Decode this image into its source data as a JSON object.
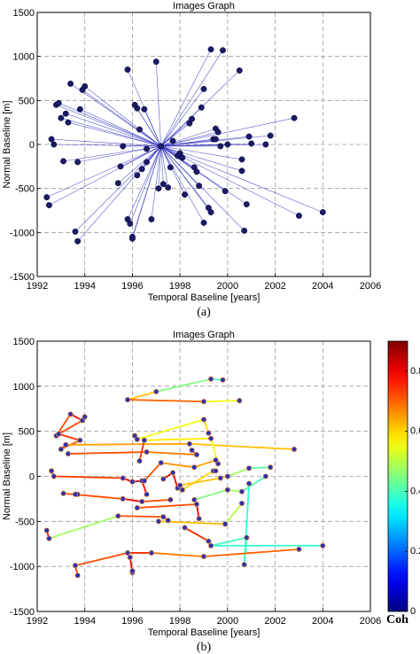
{
  "chart_data": [
    {
      "type": "scatter",
      "title": "Images Graph",
      "xlabel": "Temporal Baseline [years]",
      "ylabel": "Normal Baseline [m]",
      "caption": "(a)",
      "xlim": [
        1992,
        2006
      ],
      "ylim": [
        -1500,
        1500
      ],
      "xticks": [
        "1992",
        "1994",
        "1996",
        "1998",
        "2000",
        "2002",
        "2004",
        "2006"
      ],
      "yticks": [
        "-1500",
        "-1000",
        "-500",
        "0",
        "500",
        "1000",
        "1500"
      ],
      "grid": true,
      "line_color": "#3030c0",
      "marker_color": "#1a1a66",
      "master": [
        1997.2,
        -20
      ],
      "points": [
        [
          1992.4,
          -600
        ],
        [
          1992.5,
          -690
        ],
        [
          1992.6,
          60
        ],
        [
          1992.7,
          0
        ],
        [
          1992.8,
          450
        ],
        [
          1992.9,
          470
        ],
        [
          1993.0,
          300
        ],
        [
          1993.1,
          -190
        ],
        [
          1993.2,
          350
        ],
        [
          1993.3,
          250
        ],
        [
          1993.4,
          690
        ],
        [
          1993.6,
          -990
        ],
        [
          1993.7,
          -1100
        ],
        [
          1993.7,
          -200
        ],
        [
          1993.8,
          400
        ],
        [
          1993.9,
          620
        ],
        [
          1994.0,
          660
        ],
        [
          1995.4,
          -440
        ],
        [
          1995.5,
          -250
        ],
        [
          1995.6,
          -20
        ],
        [
          1995.8,
          850
        ],
        [
          1995.8,
          -850
        ],
        [
          1995.9,
          -900
        ],
        [
          1996.0,
          -1070
        ],
        [
          1996.0,
          -1050
        ],
        [
          1996.1,
          450
        ],
        [
          1996.2,
          410
        ],
        [
          1996.2,
          -350
        ],
        [
          1996.3,
          170
        ],
        [
          1996.4,
          -280
        ],
        [
          1996.5,
          400
        ],
        [
          1996.6,
          -50
        ],
        [
          1996.6,
          -200
        ],
        [
          1996.8,
          -850
        ],
        [
          1997.0,
          940
        ],
        [
          1997.1,
          -500
        ],
        [
          1997.3,
          -450
        ],
        [
          1997.5,
          -490
        ],
        [
          1997.6,
          -260
        ],
        [
          1997.7,
          40
        ],
        [
          1997.9,
          -130
        ],
        [
          1998.0,
          -100
        ],
        [
          1998.1,
          -150
        ],
        [
          1998.2,
          -570
        ],
        [
          1998.4,
          240
        ],
        [
          1998.5,
          290
        ],
        [
          1998.6,
          -260
        ],
        [
          1998.7,
          -310
        ],
        [
          1998.8,
          -470
        ],
        [
          1998.9,
          420
        ],
        [
          1999.0,
          -890
        ],
        [
          1999.0,
          630
        ],
        [
          1999.2,
          -720
        ],
        [
          1999.3,
          -770
        ],
        [
          1999.3,
          1080
        ],
        [
          1999.4,
          60
        ],
        [
          1999.5,
          180
        ],
        [
          1999.5,
          60
        ],
        [
          1999.6,
          140
        ],
        [
          1999.7,
          -20
        ],
        [
          1999.8,
          1070
        ],
        [
          1999.9,
          -530
        ],
        [
          2000.0,
          0
        ],
        [
          2000.5,
          840
        ],
        [
          2000.6,
          -170
        ],
        [
          2000.6,
          -300
        ],
        [
          2000.7,
          -980
        ],
        [
          2000.8,
          -680
        ],
        [
          2000.9,
          90
        ],
        [
          2001.0,
          10
        ],
        [
          2001.6,
          0
        ],
        [
          2001.8,
          100
        ],
        [
          2002.8,
          300
        ],
        [
          2003.0,
          -810
        ],
        [
          2004.0,
          -770
        ]
      ]
    },
    {
      "type": "line",
      "title": "Images Graph",
      "xlabel": "Temporal Baseline [years]",
      "ylabel": "Normal Baseline [m]",
      "caption": "(b)",
      "xlim": [
        1992,
        2006
      ],
      "ylim": [
        -1500,
        1500
      ],
      "xticks": [
        "1992",
        "1994",
        "1996",
        "1998",
        "2000",
        "2002",
        "2004",
        "2006"
      ],
      "yticks": [
        "-1500",
        "-1000",
        "-500",
        "0",
        "500",
        "1000",
        "1500"
      ],
      "grid": true,
      "marker_color": "#3030b0",
      "colorbar": {
        "label": "Coh",
        "ticks": [
          "0",
          "0.2",
          "0.4",
          "0.6",
          "0.8"
        ],
        "range": [
          0,
          0.9
        ],
        "colormap": "jet"
      },
      "edges": [
        [
          [
            1995.8,
            850
          ],
          [
            1997.0,
            940
          ],
          0.62
        ],
        [
          [
            1997.0,
            940
          ],
          [
            1999.3,
            1080
          ],
          0.45
        ],
        [
          [
            1999.3,
            1080
          ],
          [
            1999.8,
            1070
          ],
          0.4
        ],
        [
          [
            1995.8,
            850
          ],
          [
            1999.0,
            830
          ],
          0.7
        ],
        [
          [
            1999.0,
            830
          ],
          [
            2000.5,
            840
          ],
          0.55
        ],
        [
          [
            1992.8,
            450
          ],
          [
            1993.4,
            690
          ],
          0.72
        ],
        [
          [
            1993.4,
            690
          ],
          [
            1993.9,
            620
          ],
          0.78
        ],
        [
          [
            1993.9,
            620
          ],
          [
            1994.0,
            660
          ],
          0.8
        ],
        [
          [
            1993.9,
            620
          ],
          [
            1992.9,
            470
          ],
          0.72
        ],
        [
          [
            1992.9,
            470
          ],
          [
            1993.8,
            400
          ],
          0.75
        ],
        [
          [
            1993.8,
            400
          ],
          [
            1993.0,
            300
          ],
          0.72
        ],
        [
          [
            1993.0,
            300
          ],
          [
            1993.2,
            350
          ],
          0.78
        ],
        [
          [
            1993.2,
            350
          ],
          [
            1998.4,
            360
          ],
          0.65
        ],
        [
          [
            1998.4,
            360
          ],
          [
            2002.8,
            300
          ],
          0.62
        ],
        [
          [
            1996.1,
            450
          ],
          [
            1996.2,
            410
          ],
          0.8
        ],
        [
          [
            1996.2,
            410
          ],
          [
            1999.0,
            630
          ],
          0.55
        ],
        [
          [
            1999.0,
            630
          ],
          [
            1999.2,
            480
          ],
          0.6
        ],
        [
          [
            1996.3,
            170
          ],
          [
            1996.5,
            400
          ],
          0.75
        ],
        [
          [
            1996.5,
            400
          ],
          [
            1999.3,
            420
          ],
          0.58
        ],
        [
          [
            1999.3,
            420
          ],
          [
            1999.6,
            140
          ],
          0.55
        ],
        [
          [
            1993.3,
            250
          ],
          [
            1996.6,
            270
          ],
          0.72
        ],
        [
          [
            1996.6,
            270
          ],
          [
            1998.7,
            240
          ],
          0.68
        ],
        [
          [
            1998.7,
            240
          ],
          [
            1998.5,
            290
          ],
          0.78
        ],
        [
          [
            1992.6,
            60
          ],
          [
            1992.7,
            0
          ],
          0.8
        ],
        [
          [
            1992.7,
            0
          ],
          [
            1995.6,
            -20
          ],
          0.74
        ],
        [
          [
            1995.6,
            -20
          ],
          [
            1996.0,
            -60
          ],
          0.8
        ],
        [
          [
            1996.0,
            -60
          ],
          [
            1996.4,
            -50
          ],
          0.82
        ],
        [
          [
            1996.4,
            -50
          ],
          [
            1996.6,
            -200
          ],
          0.78
        ],
        [
          [
            1996.5,
            -50
          ],
          [
            1997.2,
            150
          ],
          0.72
        ],
        [
          [
            1997.2,
            150
          ],
          [
            1998.6,
            100
          ],
          0.66
        ],
        [
          [
            1998.6,
            100
          ],
          [
            1999.5,
            180
          ],
          0.65
        ],
        [
          [
            1997.3,
            -30
          ],
          [
            1997.7,
            40
          ],
          0.8
        ],
        [
          [
            1997.7,
            40
          ],
          [
            1997.9,
            -130
          ],
          0.78
        ],
        [
          [
            1997.9,
            -130
          ],
          [
            1998.1,
            -150
          ],
          0.8
        ],
        [
          [
            1998.1,
            -150
          ],
          [
            1999.4,
            60
          ],
          0.6
        ],
        [
          [
            1999.4,
            60
          ],
          [
            1999.5,
            60
          ],
          0.7
        ],
        [
          [
            1998.0,
            -100
          ],
          [
            1999.7,
            -20
          ],
          0.62
        ],
        [
          [
            1999.7,
            -20
          ],
          [
            2000.0,
            0
          ],
          0.6
        ],
        [
          [
            2000.0,
            0
          ],
          [
            2000.9,
            90
          ],
          0.48
        ],
        [
          [
            2000.9,
            90
          ],
          [
            2001.8,
            100
          ],
          0.42
        ],
        [
          [
            1998.6,
            -260
          ],
          [
            2000.0,
            -150
          ],
          0.45
        ],
        [
          [
            2000.0,
            -150
          ],
          [
            2000.6,
            -170
          ],
          0.48
        ],
        [
          [
            2000.6,
            -170
          ],
          [
            2001.6,
            0
          ],
          0.4
        ],
        [
          [
            1993.1,
            -190
          ],
          [
            1995.6,
            -250
          ],
          0.72
        ],
        [
          [
            1995.6,
            -250
          ],
          [
            1996.4,
            -280
          ],
          0.8
        ],
        [
          [
            1996.4,
            -280
          ],
          [
            1997.6,
            -260
          ],
          0.72
        ],
        [
          [
            1993.7,
            -200
          ],
          [
            1993.6,
            -200
          ],
          0.78
        ],
        [
          [
            1996.2,
            -350
          ],
          [
            1998.7,
            -310
          ],
          0.72
        ],
        [
          [
            1998.7,
            -310
          ],
          [
            1998.8,
            -470
          ],
          0.8
        ],
        [
          [
            1995.4,
            -440
          ],
          [
            1997.3,
            -450
          ],
          0.72
        ],
        [
          [
            1997.3,
            -450
          ],
          [
            1997.5,
            -490
          ],
          0.8
        ],
        [
          [
            1997.1,
            -500
          ],
          [
            1999.9,
            -530
          ],
          0.62
        ],
        [
          [
            1999.9,
            -530
          ],
          [
            2000.6,
            -300
          ],
          0.5
        ],
        [
          [
            1992.4,
            -600
          ],
          [
            1992.5,
            -690
          ],
          0.8
        ],
        [
          [
            1992.5,
            -690
          ],
          [
            1995.4,
            -440
          ],
          0.48
        ],
        [
          [
            1998.2,
            -570
          ],
          [
            1999.2,
            -720
          ],
          0.75
        ],
        [
          [
            1999.2,
            -720
          ],
          [
            1999.3,
            -770
          ],
          0.7
        ],
        [
          [
            1999.3,
            -770
          ],
          [
            2000.8,
            -680
          ],
          0.4
        ],
        [
          [
            2000.8,
            -680
          ],
          [
            2000.7,
            -980
          ],
          0.42
        ],
        [
          [
            2000.7,
            -980
          ],
          [
            2000.9,
            -80
          ],
          0.38
        ],
        [
          [
            1999.0,
            -890
          ],
          [
            2003.0,
            -810
          ],
          0.7
        ],
        [
          [
            1999.3,
            -770
          ],
          [
            2004.0,
            -770
          ],
          0.38
        ],
        [
          [
            1993.6,
            -990
          ],
          [
            1995.8,
            -850
          ],
          0.72
        ],
        [
          [
            1995.8,
            -850
          ],
          [
            1996.8,
            -850
          ],
          0.75
        ],
        [
          [
            1996.8,
            -850
          ],
          [
            1999.0,
            -890
          ],
          0.68
        ],
        [
          [
            1995.9,
            -900
          ],
          [
            1996.0,
            -1070
          ],
          0.8
        ],
        [
          [
            1996.0,
            -1070
          ],
          [
            1996.0,
            -1050
          ],
          0.8
        ],
        [
          [
            1993.6,
            -990
          ],
          [
            1993.7,
            -1100
          ],
          0.75
        ]
      ]
    }
  ]
}
